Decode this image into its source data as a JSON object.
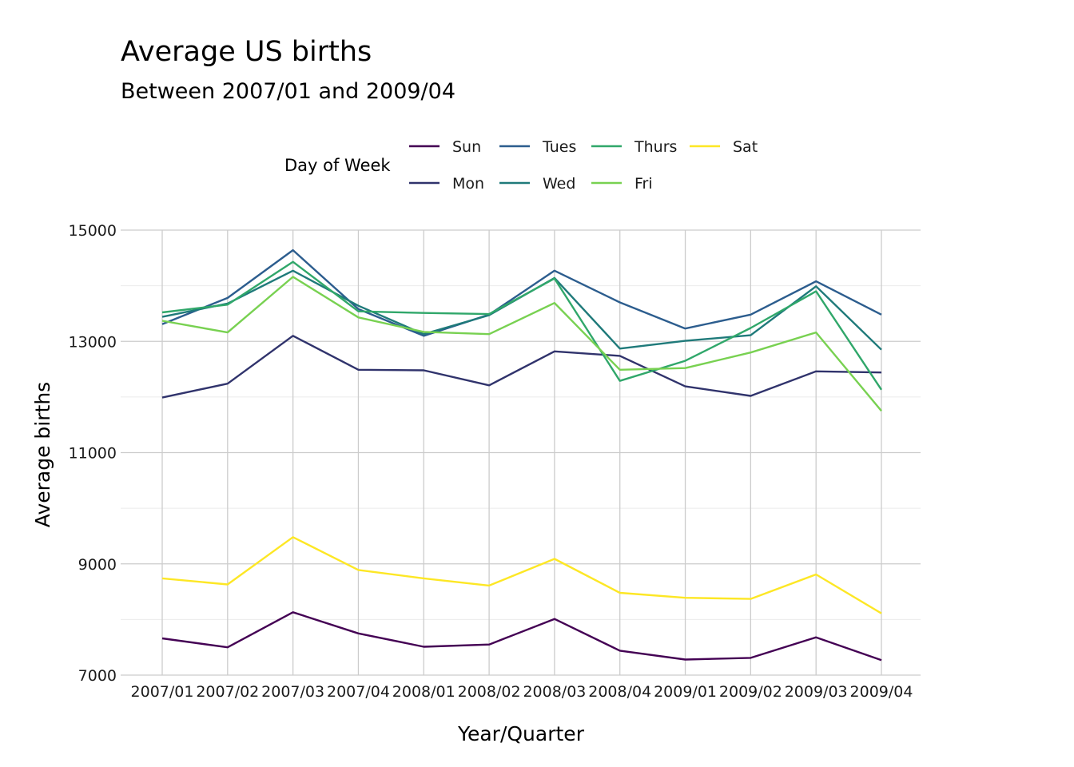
{
  "chart_data": {
    "type": "line",
    "title": "Average US births",
    "subtitle": "Between 2007/01 and 2009/04",
    "xlabel": "Year/Quarter",
    "ylabel": "Average births",
    "legend_title": "Day of Week",
    "legend_position": "top",
    "grid": true,
    "ylim": [
      7000,
      15000
    ],
    "yticks": [
      7000,
      9000,
      11000,
      13000,
      15000
    ],
    "categories": [
      "2007/01",
      "2007/02",
      "2007/03",
      "2007/04",
      "2008/01",
      "2008/02",
      "2008/03",
      "2008/04",
      "2009/01",
      "2009/02",
      "2009/03",
      "2009/04"
    ],
    "series": [
      {
        "name": "Sun",
        "color": "#440154",
        "values": [
          7660,
          7500,
          8130,
          7750,
          7510,
          7550,
          8010,
          7440,
          7280,
          7310,
          7680,
          7270
        ]
      },
      {
        "name": "Mon",
        "color": "#30336c",
        "values": [
          11990,
          12240,
          13100,
          12490,
          12480,
          12210,
          12820,
          12740,
          12190,
          12020,
          12460,
          12440
        ]
      },
      {
        "name": "Tues",
        "color": "#2c5d8e",
        "values": [
          13310,
          13780,
          14640,
          13580,
          13100,
          13480,
          14270,
          13700,
          13230,
          13480,
          14080,
          13480
        ]
      },
      {
        "name": "Wed",
        "color": "#1f7a7a",
        "values": [
          13440,
          13680,
          14270,
          13640,
          13130,
          13470,
          14140,
          12870,
          13010,
          13110,
          13990,
          12850
        ]
      },
      {
        "name": "Thurs",
        "color": "#30a76a",
        "values": [
          13520,
          13660,
          14430,
          13540,
          13510,
          13490,
          14130,
          12290,
          12650,
          13240,
          13900,
          12130
        ]
      },
      {
        "name": "Fri",
        "color": "#78d151",
        "values": [
          13370,
          13160,
          14160,
          13430,
          13170,
          13130,
          13690,
          12490,
          12520,
          12800,
          13160,
          11750
        ]
      },
      {
        "name": "Sat",
        "color": "#fde725",
        "values": [
          8740,
          8630,
          9480,
          8890,
          8740,
          8610,
          9090,
          8480,
          8390,
          8370,
          8810,
          8110
        ]
      }
    ]
  }
}
